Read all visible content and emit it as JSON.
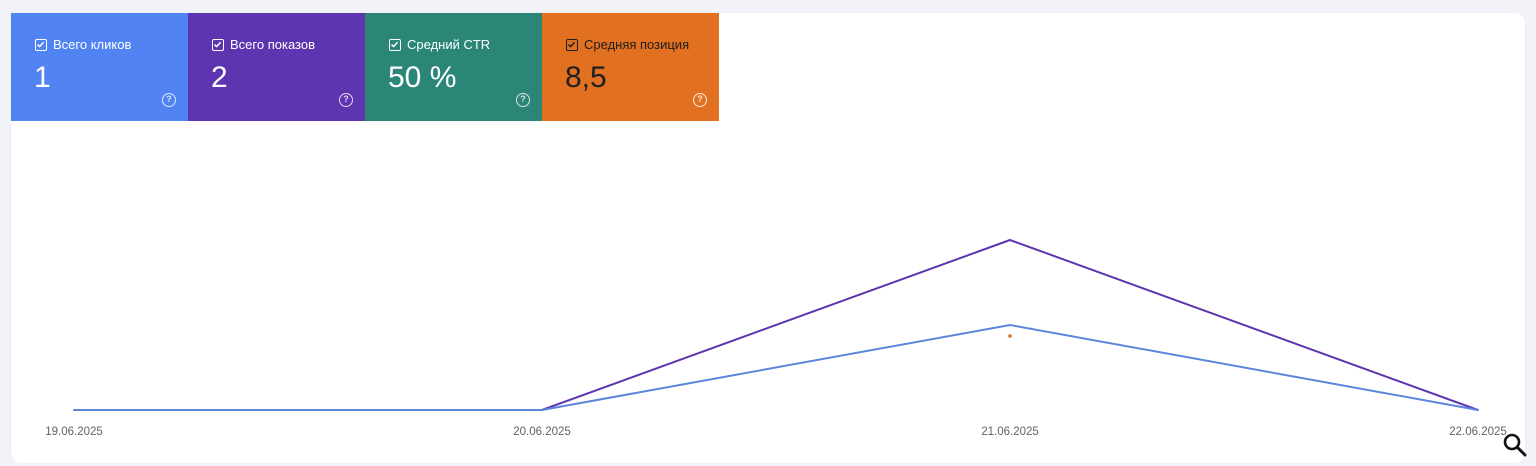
{
  "metrics": [
    {
      "id": "clicks",
      "label": "Всего кликов",
      "value": "1",
      "checked": true,
      "color": "#5183f2"
    },
    {
      "id": "impressions",
      "label": "Всего показов",
      "value": "2",
      "checked": true,
      "color": "#5e35b1"
    },
    {
      "id": "ctr",
      "label": "Средний CTR",
      "value": "50 %",
      "checked": true,
      "color": "#2b8678"
    },
    {
      "id": "position",
      "label": "Средняя позиция",
      "value": "8,5",
      "checked": true,
      "color": "#e17020"
    }
  ],
  "chart_data": {
    "type": "line",
    "x": [
      "19.06.2025",
      "20.06.2025",
      "21.06.2025",
      "22.06.2025"
    ],
    "series": [
      {
        "name": "Всего показов",
        "color": "#5e35b1",
        "values": [
          0,
          0,
          2,
          0
        ]
      },
      {
        "name": "Всего кликов",
        "color": "#5b86dc",
        "values": [
          0,
          0,
          1,
          0
        ]
      },
      {
        "name": "Средняя позиция",
        "color": "#e17020",
        "values": [
          null,
          null,
          8.5,
          null
        ]
      }
    ],
    "xlabel": "",
    "ylabel": "",
    "grid": false
  },
  "icons": {
    "help": "help-circle-icon",
    "zoom": "search-icon"
  }
}
